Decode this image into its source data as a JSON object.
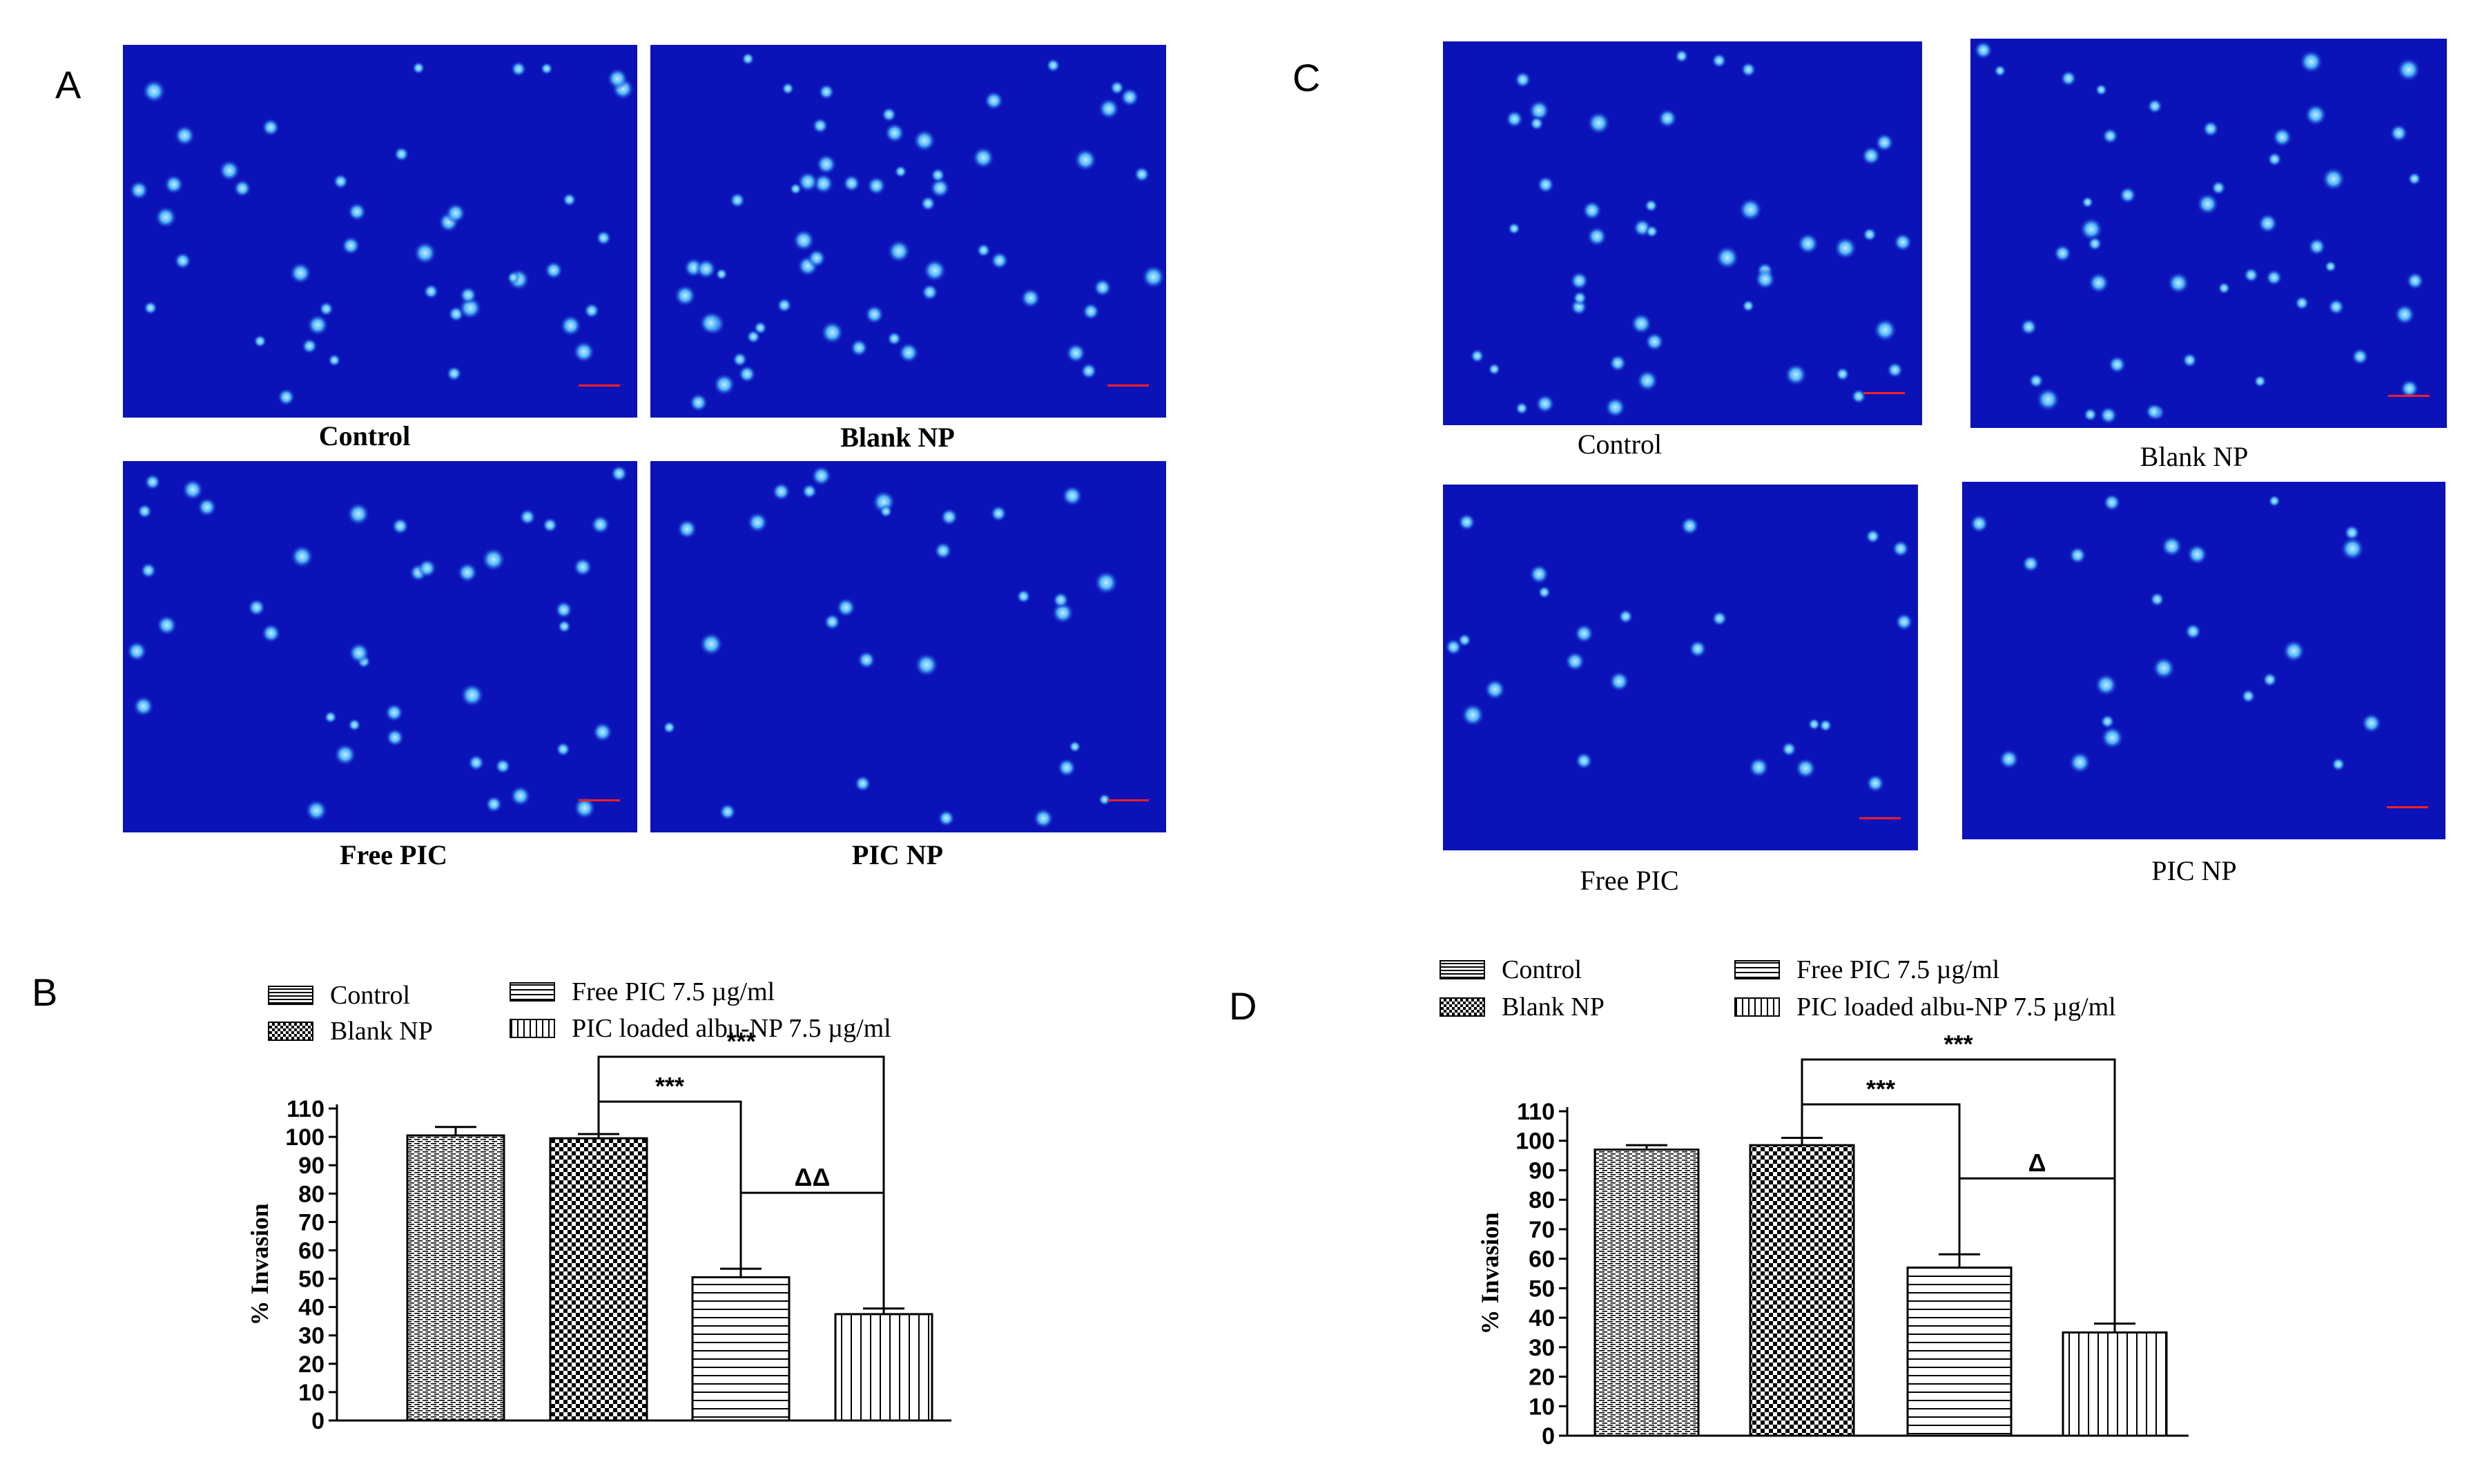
{
  "panels": {
    "A": {
      "letter": "A",
      "images": [
        {
          "label": "Control",
          "seed": 11,
          "cells": 42
        },
        {
          "label": "Blank NP",
          "seed": 23,
          "cells": 58
        },
        {
          "label": "Free PIC",
          "seed": 37,
          "cells": 40
        },
        {
          "label": "PIC NP",
          "seed": 53,
          "cells": 28
        }
      ]
    },
    "C": {
      "letter": "C",
      "images": [
        {
          "label": "Control",
          "seed": 61,
          "cells": 44
        },
        {
          "label": "Blank NP",
          "seed": 71,
          "cells": 46
        },
        {
          "label": "Free PIC",
          "seed": 83,
          "cells": 24
        },
        {
          "label": "PIC NP",
          "seed": 97,
          "cells": 22
        }
      ]
    },
    "B": {
      "letter": "B"
    },
    "D": {
      "letter": "D"
    }
  },
  "scale_bar_color": "#ff2020",
  "microscopy_background": "#0a12b8",
  "cell_color": "#4fb8ff",
  "legend": {
    "control": "Control",
    "blank_np": "Blank NP",
    "free_pic": "Free PIC 7.5 µg/ml",
    "pic_np": "PIC loaded albu-NP 7.5 µg/ml"
  },
  "chart_data": [
    {
      "panel": "B",
      "type": "bar",
      "categories": [
        "Control",
        "Blank NP",
        "Free PIC 7.5 µg/ml",
        "PIC loaded albu-NP 7.5 µg/ml"
      ],
      "values": [
        100.5,
        99.5,
        50.5,
        37.5
      ],
      "errors": [
        3,
        1.5,
        3,
        2
      ],
      "ylabel": "% Invasion",
      "ylim": [
        0,
        110
      ],
      "yticks": [
        0,
        10,
        20,
        30,
        40,
        50,
        60,
        70,
        80,
        90,
        100,
        110
      ],
      "annotations": [
        {
          "from": 1,
          "to": 2,
          "text": "***"
        },
        {
          "from": 2,
          "to": 3,
          "text": "ΔΔ"
        },
        {
          "from": 1,
          "to": 3,
          "text": "***"
        }
      ]
    },
    {
      "panel": "D",
      "type": "bar",
      "categories": [
        "Control",
        "Blank NP",
        "Free PIC 7.5 µg/ml",
        "PIC loaded albu-NP 7.5 µg/ml"
      ],
      "values": [
        97,
        98.5,
        57,
        35
      ],
      "errors": [
        1.5,
        2.5,
        4.5,
        3
      ],
      "ylabel": "% Invasion",
      "ylim": [
        0,
        110
      ],
      "yticks": [
        0,
        10,
        20,
        30,
        40,
        50,
        60,
        70,
        80,
        90,
        100,
        110
      ],
      "annotations": [
        {
          "from": 1,
          "to": 2,
          "text": "***"
        },
        {
          "from": 2,
          "to": 3,
          "text": "Δ"
        },
        {
          "from": 1,
          "to": 3,
          "text": "***"
        }
      ]
    }
  ]
}
